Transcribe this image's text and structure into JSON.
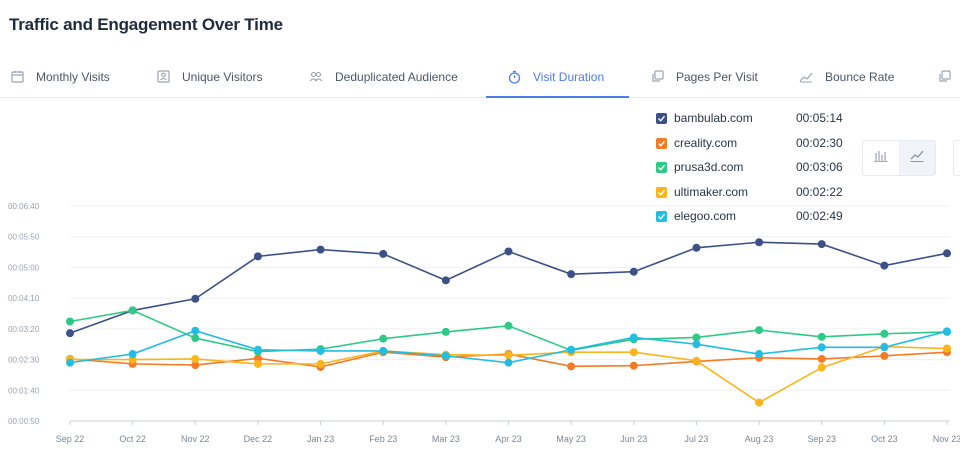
{
  "title": "Traffic and Engagement Over Time",
  "tabs": [
    {
      "label": "Monthly Visits",
      "icon": "calendar-icon",
      "active": false
    },
    {
      "label": "Unique Visitors",
      "icon": "visitor-card-icon",
      "active": false
    },
    {
      "label": "Deduplicated Audience",
      "icon": "people-icon",
      "active": false
    },
    {
      "label": "Visit Duration",
      "icon": "stopwatch-icon",
      "active": true
    },
    {
      "label": "Pages Per Visit",
      "icon": "pages-icon",
      "active": false
    },
    {
      "label": "Bounce Rate",
      "icon": "trend-icon",
      "active": false
    }
  ],
  "colors": {
    "accent": "#4a7df0",
    "grid": "#eef0f4",
    "tick": "#7d8794"
  },
  "legend": [
    {
      "name": "bambulab.com",
      "value": "00:05:14",
      "color": "#3d5189"
    },
    {
      "name": "creality.com",
      "value": "00:02:30",
      "color": "#f47b25"
    },
    {
      "name": "prusa3d.com",
      "value": "00:03:06",
      "color": "#2ec985"
    },
    {
      "name": "ultimaker.com",
      "value": "00:02:22",
      "color": "#fbb51b"
    },
    {
      "name": "elegoo.com",
      "value": "00:02:49",
      "color": "#22bde0"
    }
  ],
  "chart_type_buttons": [
    {
      "name": "bar-chart-icon",
      "active": false
    },
    {
      "name": "line-chart-icon",
      "active": true
    }
  ],
  "chart_data": {
    "type": "line",
    "title": "",
    "xlabel": "",
    "ylabel": "",
    "categories": [
      "Sep 22",
      "Oct 22",
      "Nov 22",
      "Dec 22",
      "Jan 23",
      "Feb 23",
      "Mar 23",
      "Apr 23",
      "May 23",
      "Jun 23",
      "Jul 23",
      "Aug 23",
      "Sep 23",
      "Oct 23",
      "Nov 23"
    ],
    "y_ticks": [
      "00:00:50",
      "00:01:40",
      "00:02:30",
      "00:03:20",
      "00:04:10",
      "00:05:00",
      "00:05:50",
      "00:06:40"
    ],
    "y_unit": "seconds",
    "ylim": [
      50,
      400
    ],
    "grid": true,
    "legend_position": "top-right",
    "series": [
      {
        "name": "bambulab.com",
        "color": "#3d5189",
        "values": [
          193,
          230,
          249,
          318,
          329,
          322,
          279,
          326,
          289,
          293,
          332,
          341,
          338,
          303,
          323
        ]
      },
      {
        "name": "creality.com",
        "color": "#f47b25",
        "values": [
          151,
          143,
          141,
          152,
          138,
          162,
          154,
          159,
          139,
          140,
          147,
          153,
          151,
          156,
          162
        ]
      },
      {
        "name": "prusa3d.com",
        "color": "#2ec985",
        "values": [
          212,
          230,
          185,
          163,
          167,
          184,
          195,
          205,
          165,
          183,
          186,
          198,
          187,
          192,
          195
        ]
      },
      {
        "name": "ultimaker.com",
        "color": "#fbb51b",
        "values": [
          150,
          150,
          151,
          143,
          143,
          164,
          158,
          157,
          162,
          162,
          148,
          80,
          137,
          171,
          168
        ]
      },
      {
        "name": "elegoo.com",
        "color": "#22bde0",
        "values": [
          145,
          159,
          197,
          166,
          164,
          164,
          156,
          145,
          166,
          186,
          175,
          159,
          170,
          170,
          196
        ]
      }
    ]
  }
}
